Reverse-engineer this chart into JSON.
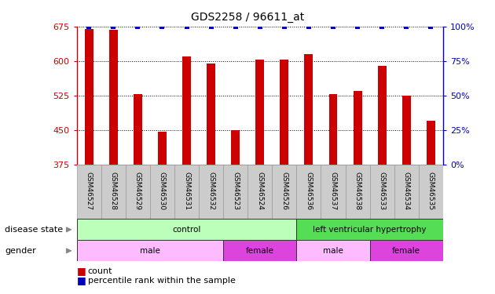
{
  "title": "GDS2258 / 96611_at",
  "samples": [
    "GSM46527",
    "GSM46528",
    "GSM46529",
    "GSM46530",
    "GSM46531",
    "GSM46532",
    "GSM46523",
    "GSM46524",
    "GSM46526",
    "GSM46536",
    "GSM46537",
    "GSM46538",
    "GSM46533",
    "GSM46534",
    "GSM46535"
  ],
  "counts": [
    670,
    668,
    528,
    447,
    610,
    595,
    450,
    603,
    603,
    615,
    528,
    535,
    590,
    525,
    470
  ],
  "percentiles": [
    100,
    100,
    100,
    100,
    100,
    100,
    100,
    100,
    100,
    100,
    100,
    100,
    100,
    100,
    100
  ],
  "ylim_left": [
    375,
    675
  ],
  "ylim_right": [
    0,
    100
  ],
  "yticks_left": [
    375,
    450,
    525,
    600,
    675
  ],
  "yticks_right": [
    0,
    25,
    50,
    75,
    100
  ],
  "bar_color": "#cc0000",
  "dot_color": "#0000bb",
  "grid_color": "#000000",
  "disease_state_groups": [
    {
      "label": "control",
      "start": 0,
      "end": 8,
      "color": "#bbffbb"
    },
    {
      "label": "left ventricular hypertrophy",
      "start": 9,
      "end": 14,
      "color": "#55dd55"
    }
  ],
  "gender_groups": [
    {
      "label": "male",
      "start": 0,
      "end": 5,
      "color": "#ffbbff"
    },
    {
      "label": "female",
      "start": 6,
      "end": 8,
      "color": "#dd44dd"
    },
    {
      "label": "male",
      "start": 9,
      "end": 11,
      "color": "#ffbbff"
    },
    {
      "label": "female",
      "start": 12,
      "end": 14,
      "color": "#dd44dd"
    }
  ],
  "left_axis_color": "#cc0000",
  "right_axis_color": "#0000bb",
  "label_disease_state": "disease state",
  "label_gender": "gender",
  "annotation_count": "count",
  "annotation_percentile": "percentile rank within the sample",
  "sample_box_color": "#cccccc",
  "sample_box_edge": "#999999"
}
